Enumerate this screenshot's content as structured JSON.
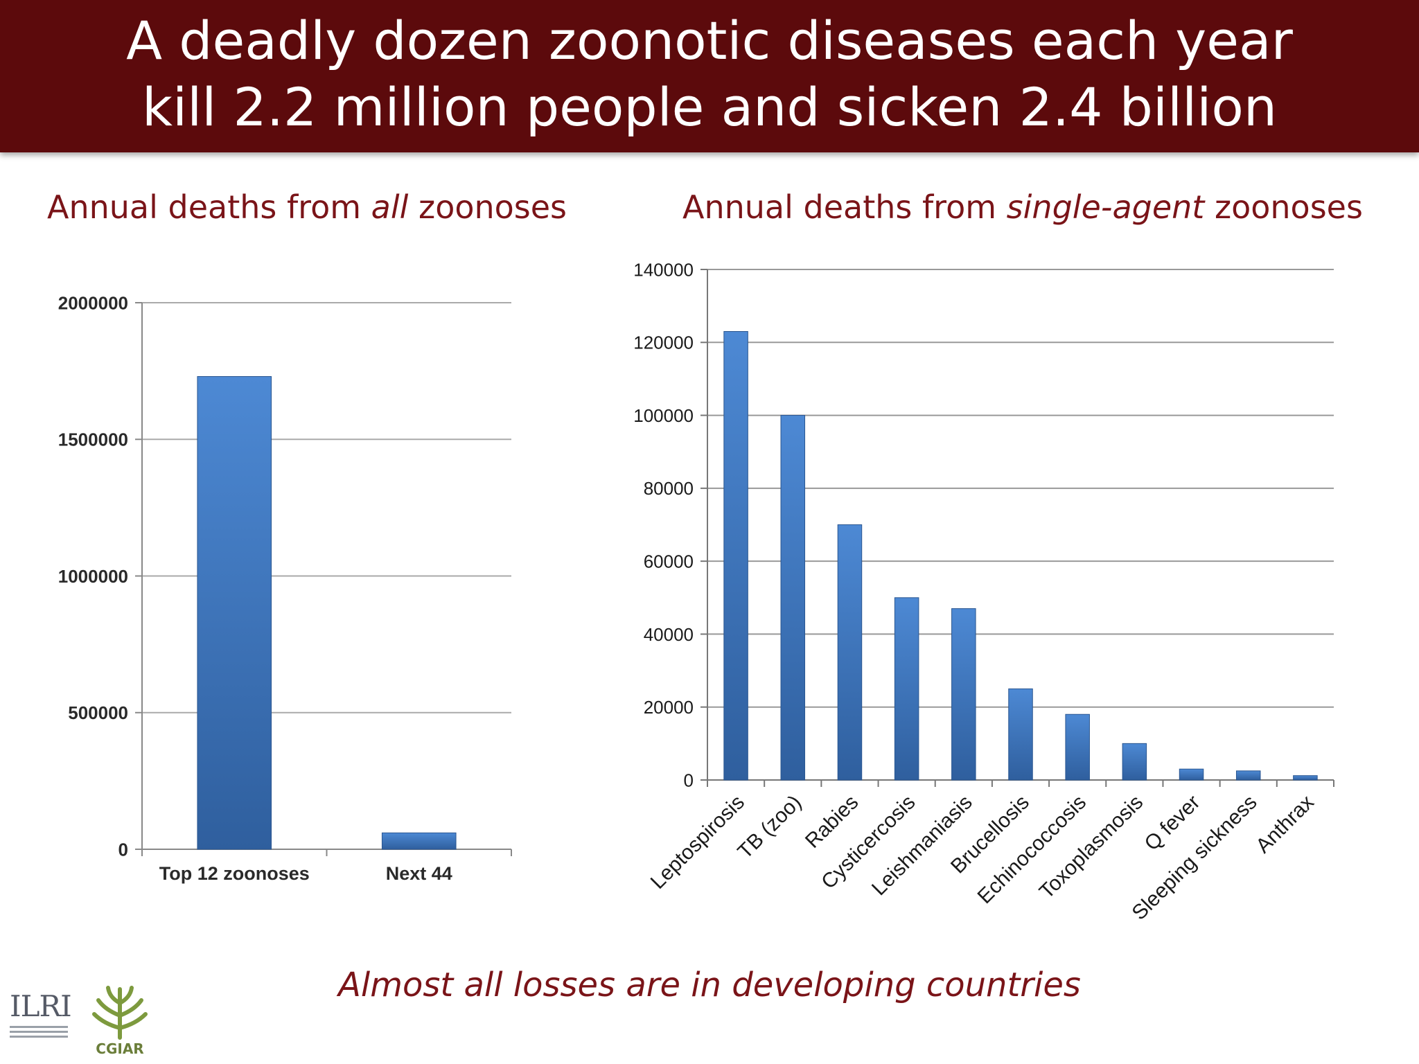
{
  "title": {
    "line1": "A deadly dozen zoonotic diseases each year",
    "line2": "kill 2.2 million people and sicken 2.4 billion"
  },
  "left_subtitle": {
    "before": "Annual deaths from ",
    "emph": "all",
    "after": " zoonoses"
  },
  "right_subtitle": {
    "before": "Annual deaths from ",
    "emph": "single-agent",
    "after": " zoonoses"
  },
  "footer_note": "Almost all losses are in developing countries",
  "logos": {
    "ilri": "ILRI",
    "cgiar": "CGIAR"
  },
  "colors": {
    "banner": "#5c0a0c",
    "accent_text": "#7a1418",
    "bar": "#3d78c4"
  },
  "chart_data": [
    {
      "type": "bar",
      "categories": [
        "Top 12 zoonoses",
        "Next 44"
      ],
      "values": [
        1730000,
        60000
      ],
      "ylim": [
        0,
        2000000
      ],
      "yticks": [
        0,
        500000,
        1000000,
        1500000,
        2000000
      ],
      "grid": true
    },
    {
      "type": "bar",
      "categories": [
        "Leptospirosis",
        "TB (zoo)",
        "Rabies",
        "Cysticercosis",
        "Leishmaniasis",
        "Brucellosis",
        "Echinococcosis",
        "Toxoplasmosis",
        "Q fever",
        "Sleeping sickness",
        "Anthrax"
      ],
      "values": [
        123000,
        100000,
        70000,
        50000,
        47000,
        25000,
        18000,
        10000,
        3000,
        2500,
        1200
      ],
      "ylim": [
        0,
        140000
      ],
      "yticks": [
        0,
        20000,
        40000,
        60000,
        80000,
        100000,
        120000,
        140000
      ],
      "grid": true
    }
  ]
}
